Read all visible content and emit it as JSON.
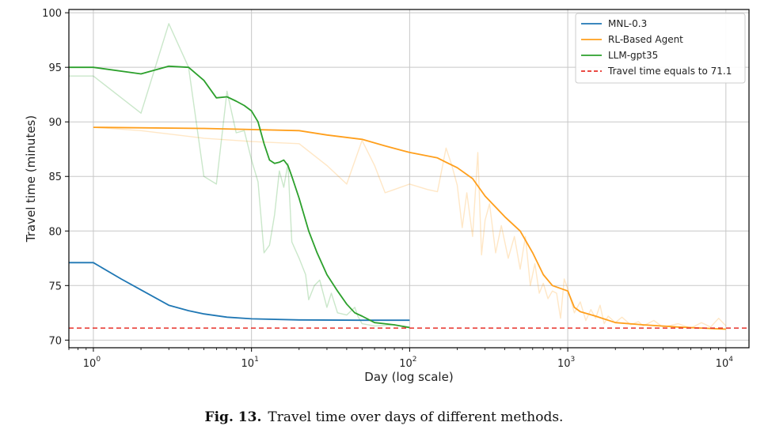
{
  "caption": {
    "figure_number": "Fig. 13.",
    "text": "Travel time over days of different methods."
  },
  "chart_data": {
    "type": "line",
    "xlabel": "Day (log scale)",
    "ylabel": "Travel time (minutes)",
    "xscale": "log",
    "xlim": [
      0.7,
      14000
    ],
    "ylim": [
      69.3,
      100.3
    ],
    "xticks": [
      {
        "value": 1,
        "base": "10",
        "exp": "0"
      },
      {
        "value": 10,
        "base": "10",
        "exp": "1"
      },
      {
        "value": 100,
        "base": "10",
        "exp": "2"
      },
      {
        "value": 1000,
        "base": "10",
        "exp": "3"
      },
      {
        "value": 10000,
        "base": "10",
        "exp": "4"
      }
    ],
    "yticks": [
      70,
      75,
      80,
      85,
      90,
      95,
      100
    ],
    "grid": true,
    "legend_position": "top-right",
    "series": [
      {
        "name": "MNL-0.3",
        "color": "#1f77b4",
        "raw": null,
        "smooth": [
          [
            0.7,
            77.1
          ],
          [
            1,
            77.1
          ],
          [
            1.5,
            75.6
          ],
          [
            2,
            74.6
          ],
          [
            3,
            73.2
          ],
          [
            4,
            72.7
          ],
          [
            5,
            72.4
          ],
          [
            7,
            72.1
          ],
          [
            10,
            71.95
          ],
          [
            20,
            71.85
          ],
          [
            50,
            71.82
          ],
          [
            100,
            71.82
          ]
        ]
      },
      {
        "name": "RL-Based Agent",
        "color": "#ff9f1c",
        "raw": [
          [
            1,
            89.5
          ],
          [
            2,
            89.2
          ],
          [
            5,
            88.5
          ],
          [
            10,
            88.2
          ],
          [
            20,
            88
          ],
          [
            30,
            86
          ],
          [
            40,
            84.3
          ],
          [
            50,
            88.3
          ],
          [
            60,
            86
          ],
          [
            70,
            83.5
          ],
          [
            80,
            83.8
          ],
          [
            100,
            84.3
          ],
          [
            130,
            83.8
          ],
          [
            150,
            83.6
          ],
          [
            170,
            87.6
          ],
          [
            185,
            86
          ],
          [
            200,
            84.2
          ],
          [
            215,
            80.3
          ],
          [
            230,
            83.5
          ],
          [
            250,
            79.5
          ],
          [
            270,
            87.2
          ],
          [
            285,
            77.8
          ],
          [
            300,
            81
          ],
          [
            320,
            82.5
          ],
          [
            350,
            78
          ],
          [
            380,
            80.5
          ],
          [
            420,
            77.5
          ],
          [
            460,
            79.5
          ],
          [
            500,
            76.5
          ],
          [
            540,
            79.5
          ],
          [
            580,
            75
          ],
          [
            620,
            77
          ],
          [
            660,
            74.3
          ],
          [
            700,
            75.2
          ],
          [
            750,
            73.8
          ],
          [
            800,
            74.5
          ],
          [
            850,
            74.3
          ],
          [
            900,
            72
          ],
          [
            950,
            75.6
          ],
          [
            1000,
            74.7
          ],
          [
            1100,
            72.5
          ],
          [
            1200,
            73.5
          ],
          [
            1300,
            71.8
          ],
          [
            1400,
            72.8
          ],
          [
            1500,
            72
          ],
          [
            1600,
            73.2
          ],
          [
            1700,
            71.5
          ],
          [
            1800,
            72.2
          ],
          [
            2000,
            71.6
          ],
          [
            2200,
            72.1
          ],
          [
            2500,
            71.4
          ],
          [
            2800,
            71.7
          ],
          [
            3000,
            71.3
          ],
          [
            3500,
            71.8
          ],
          [
            4000,
            71.2
          ],
          [
            5000,
            71.5
          ],
          [
            6000,
            71.1
          ],
          [
            7000,
            71.6
          ],
          [
            8000,
            71.2
          ],
          [
            9000,
            72
          ],
          [
            10000,
            71.3
          ]
        ],
        "smooth": [
          [
            1,
            89.5
          ],
          [
            5,
            89.4
          ],
          [
            10,
            89.3
          ],
          [
            20,
            89.2
          ],
          [
            30,
            88.8
          ],
          [
            50,
            88.4
          ],
          [
            70,
            87.8
          ],
          [
            100,
            87.2
          ],
          [
            150,
            86.7
          ],
          [
            170,
            86.3
          ],
          [
            200,
            85.8
          ],
          [
            250,
            84.8
          ],
          [
            300,
            83.2
          ],
          [
            400,
            81.3
          ],
          [
            500,
            80
          ],
          [
            600,
            78
          ],
          [
            700,
            76
          ],
          [
            800,
            75
          ],
          [
            1000,
            74.5
          ],
          [
            1100,
            73
          ],
          [
            1200,
            72.6
          ],
          [
            1500,
            72.2
          ],
          [
            2000,
            71.6
          ],
          [
            3000,
            71.4
          ],
          [
            5000,
            71.2
          ],
          [
            7000,
            71.1
          ],
          [
            10000,
            71
          ]
        ]
      },
      {
        "name": "LLM-gpt35",
        "color": "#2ca02c",
        "raw": [
          [
            0.7,
            94.2
          ],
          [
            1,
            94.2
          ],
          [
            2,
            90.8
          ],
          [
            3,
            99
          ],
          [
            4,
            95
          ],
          [
            5,
            85
          ],
          [
            6,
            84.3
          ],
          [
            7,
            92.8
          ],
          [
            8,
            89
          ],
          [
            9,
            89.2
          ],
          [
            10,
            86.5
          ],
          [
            11,
            84.5
          ],
          [
            12,
            78
          ],
          [
            13,
            78.7
          ],
          [
            14,
            81.5
          ],
          [
            15,
            85.5
          ],
          [
            16,
            84
          ],
          [
            17,
            86.2
          ],
          [
            18,
            79
          ],
          [
            20,
            77.5
          ],
          [
            22,
            76
          ],
          [
            23,
            73.7
          ],
          [
            25,
            75
          ],
          [
            27,
            75.5
          ],
          [
            30,
            73
          ],
          [
            32,
            74.3
          ],
          [
            35,
            72.5
          ],
          [
            40,
            72.3
          ],
          [
            45,
            73
          ],
          [
            47,
            72.2
          ],
          [
            50,
            71.5
          ],
          [
            60,
            71.3
          ],
          [
            80,
            71.4
          ],
          [
            100,
            71.2
          ]
        ],
        "smooth": [
          [
            0.7,
            95
          ],
          [
            1,
            95
          ],
          [
            2,
            94.4
          ],
          [
            3,
            95.1
          ],
          [
            4,
            95
          ],
          [
            5,
            93.8
          ],
          [
            6,
            92.2
          ],
          [
            7,
            92.3
          ],
          [
            8,
            91.9
          ],
          [
            9,
            91.5
          ],
          [
            10,
            91
          ],
          [
            11,
            90
          ],
          [
            12,
            88
          ],
          [
            13,
            86.5
          ],
          [
            14,
            86.2
          ],
          [
            15,
            86.3
          ],
          [
            16,
            86.5
          ],
          [
            17,
            86
          ],
          [
            18,
            85
          ],
          [
            20,
            83
          ],
          [
            23,
            80
          ],
          [
            26,
            78
          ],
          [
            30,
            76
          ],
          [
            35,
            74.5
          ],
          [
            40,
            73.3
          ],
          [
            45,
            72.5
          ],
          [
            50,
            72.2
          ],
          [
            60,
            71.6
          ],
          [
            80,
            71.4
          ],
          [
            100,
            71.15
          ]
        ]
      },
      {
        "name": "Travel time equals to 71.1",
        "color": "#e8302a",
        "dashed": true,
        "y": 71.1,
        "raw": null,
        "smooth": null
      }
    ]
  }
}
